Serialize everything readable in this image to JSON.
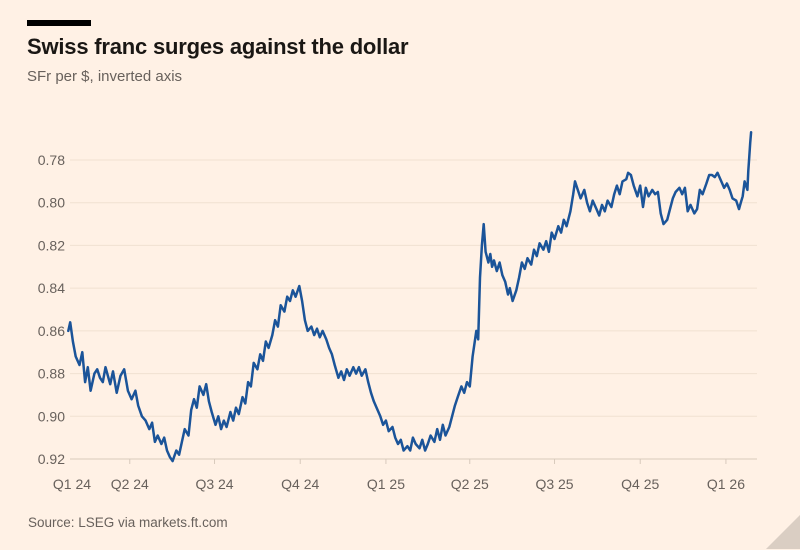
{
  "header": {
    "title": "Swiss franc surges against the dollar",
    "subtitle": "SFr per $, inverted axis"
  },
  "footer": {
    "source": "Source: LSEG via markets.ft.com"
  },
  "colors": {
    "background": "#FFF1E5",
    "line": "#1B5499",
    "title_text": "#1A1714",
    "muted_text": "#68615C",
    "gridline": "#F0E1D1",
    "axis_line": "#D8CABC"
  },
  "chart_data": {
    "type": "line",
    "title": "Swiss franc surges against the dollar",
    "subtitle": "SFr per $, inverted axis",
    "ylabel": "SFr per $",
    "y_inverted": true,
    "grid": true,
    "legend": "none",
    "y_axis": {
      "ticks": [
        0.78,
        0.8,
        0.82,
        0.84,
        0.86,
        0.88,
        0.9,
        0.92
      ],
      "range_top": 0.765,
      "range_bottom": 0.925
    },
    "x_axis": {
      "epoch": "2024-01-01",
      "unit": "days_since_epoch",
      "ticks": [
        {
          "label": "Q1 24",
          "day": 0
        },
        {
          "label": "Q2 24",
          "day": 91
        },
        {
          "label": "Q3 24",
          "day": 182
        },
        {
          "label": "Q4 24",
          "day": 274
        },
        {
          "label": "Q1 25",
          "day": 366
        },
        {
          "label": "Q2 25",
          "day": 456
        },
        {
          "label": "Q3 25",
          "day": 547
        },
        {
          "label": "Q4 25",
          "day": 639
        },
        {
          "label": "Q1 26",
          "day": 731
        }
      ]
    },
    "series": [
      {
        "name": "SFr per $",
        "points": [
          [
            25,
            0.86
          ],
          [
            27,
            0.856
          ],
          [
            30,
            0.865
          ],
          [
            33,
            0.872
          ],
          [
            37,
            0.876
          ],
          [
            40,
            0.87
          ],
          [
            43,
            0.884
          ],
          [
            46,
            0.877
          ],
          [
            49,
            0.888
          ],
          [
            53,
            0.88
          ],
          [
            56,
            0.878
          ],
          [
            59,
            0.882
          ],
          [
            62,
            0.884
          ],
          [
            65,
            0.877
          ],
          [
            70,
            0.885
          ],
          [
            73,
            0.879
          ],
          [
            77,
            0.889
          ],
          [
            81,
            0.881
          ],
          [
            85,
            0.878
          ],
          [
            89,
            0.888
          ],
          [
            93,
            0.892
          ],
          [
            97,
            0.888
          ],
          [
            100,
            0.895
          ],
          [
            104,
            0.9
          ],
          [
            108,
            0.902
          ],
          [
            112,
            0.906
          ],
          [
            115,
            0.903
          ],
          [
            118,
            0.912
          ],
          [
            121,
            0.909
          ],
          [
            125,
            0.913
          ],
          [
            128,
            0.91
          ],
          [
            131,
            0.916
          ],
          [
            134,
            0.919
          ],
          [
            137,
            0.921
          ],
          [
            141,
            0.916
          ],
          [
            144,
            0.918
          ],
          [
            147,
            0.912
          ],
          [
            150,
            0.906
          ],
          [
            154,
            0.909
          ],
          [
            157,
            0.897
          ],
          [
            160,
            0.892
          ],
          [
            163,
            0.896
          ],
          [
            166,
            0.886
          ],
          [
            170,
            0.89
          ],
          [
            173,
            0.885
          ],
          [
            176,
            0.893
          ],
          [
            179,
            0.898
          ],
          [
            183,
            0.904
          ],
          [
            186,
            0.9
          ],
          [
            189,
            0.906
          ],
          [
            192,
            0.902
          ],
          [
            195,
            0.905
          ],
          [
            199,
            0.898
          ],
          [
            202,
            0.902
          ],
          [
            205,
            0.896
          ],
          [
            208,
            0.899
          ],
          [
            212,
            0.891
          ],
          [
            215,
            0.894
          ],
          [
            218,
            0.884
          ],
          [
            221,
            0.886
          ],
          [
            224,
            0.875
          ],
          [
            228,
            0.878
          ],
          [
            231,
            0.871
          ],
          [
            234,
            0.874
          ],
          [
            237,
            0.865
          ],
          [
            240,
            0.868
          ],
          [
            244,
            0.862
          ],
          [
            247,
            0.855
          ],
          [
            250,
            0.858
          ],
          [
            253,
            0.848
          ],
          [
            257,
            0.851
          ],
          [
            260,
            0.844
          ],
          [
            263,
            0.846
          ],
          [
            266,
            0.841
          ],
          [
            269,
            0.844
          ],
          [
            273,
            0.839
          ],
          [
            276,
            0.846
          ],
          [
            279,
            0.855
          ],
          [
            282,
            0.86
          ],
          [
            286,
            0.858
          ],
          [
            289,
            0.862
          ],
          [
            292,
            0.859
          ],
          [
            295,
            0.863
          ],
          [
            298,
            0.86
          ],
          [
            302,
            0.864
          ],
          [
            305,
            0.868
          ],
          [
            308,
            0.871
          ],
          [
            311,
            0.876
          ],
          [
            315,
            0.882
          ],
          [
            318,
            0.879
          ],
          [
            321,
            0.883
          ],
          [
            324,
            0.878
          ],
          [
            327,
            0.881
          ],
          [
            331,
            0.877
          ],
          [
            334,
            0.88
          ],
          [
            337,
            0.877
          ],
          [
            340,
            0.881
          ],
          [
            344,
            0.878
          ],
          [
            347,
            0.884
          ],
          [
            350,
            0.889
          ],
          [
            353,
            0.893
          ],
          [
            356,
            0.896
          ],
          [
            360,
            0.9
          ],
          [
            363,
            0.904
          ],
          [
            366,
            0.902
          ],
          [
            369,
            0.907
          ],
          [
            373,
            0.905
          ],
          [
            376,
            0.91
          ],
          [
            379,
            0.913
          ],
          [
            382,
            0.911
          ],
          [
            385,
            0.916
          ],
          [
            389,
            0.914
          ],
          [
            392,
            0.916
          ],
          [
            395,
            0.91
          ],
          [
            398,
            0.913
          ],
          [
            402,
            0.915
          ],
          [
            405,
            0.911
          ],
          [
            408,
            0.916
          ],
          [
            411,
            0.913
          ],
          [
            414,
            0.909
          ],
          [
            418,
            0.912
          ],
          [
            421,
            0.906
          ],
          [
            424,
            0.911
          ],
          [
            427,
            0.904
          ],
          [
            430,
            0.909
          ],
          [
            434,
            0.905
          ],
          [
            437,
            0.9
          ],
          [
            440,
            0.895
          ],
          [
            443,
            0.891
          ],
          [
            447,
            0.886
          ],
          [
            450,
            0.889
          ],
          [
            453,
            0.884
          ],
          [
            456,
            0.886
          ],
          [
            459,
            0.872
          ],
          [
            463,
            0.86
          ],
          [
            465,
            0.864
          ],
          [
            467,
            0.835
          ],
          [
            469,
            0.82
          ],
          [
            471,
            0.81
          ],
          [
            473,
            0.823
          ],
          [
            476,
            0.828
          ],
          [
            478,
            0.824
          ],
          [
            480,
            0.83
          ],
          [
            482,
            0.827
          ],
          [
            485,
            0.832
          ],
          [
            488,
            0.828
          ],
          [
            491,
            0.834
          ],
          [
            494,
            0.837
          ],
          [
            497,
            0.843
          ],
          [
            499,
            0.84
          ],
          [
            502,
            0.846
          ],
          [
            506,
            0.841
          ],
          [
            509,
            0.835
          ],
          [
            512,
            0.828
          ],
          [
            515,
            0.831
          ],
          [
            518,
            0.826
          ],
          [
            522,
            0.829
          ],
          [
            525,
            0.822
          ],
          [
            528,
            0.825
          ],
          [
            531,
            0.819
          ],
          [
            535,
            0.822
          ],
          [
            538,
            0.818
          ],
          [
            541,
            0.823
          ],
          [
            544,
            0.814
          ],
          [
            547,
            0.817
          ],
          [
            551,
            0.811
          ],
          [
            554,
            0.814
          ],
          [
            557,
            0.808
          ],
          [
            560,
            0.811
          ],
          [
            564,
            0.804
          ],
          [
            567,
            0.796
          ],
          [
            569,
            0.79
          ],
          [
            572,
            0.794
          ],
          [
            575,
            0.798
          ],
          [
            579,
            0.794
          ],
          [
            582,
            0.8
          ],
          [
            585,
            0.804
          ],
          [
            588,
            0.799
          ],
          [
            592,
            0.803
          ],
          [
            595,
            0.806
          ],
          [
            598,
            0.801
          ],
          [
            601,
            0.804
          ],
          [
            604,
            0.799
          ],
          [
            608,
            0.802
          ],
          [
            611,
            0.796
          ],
          [
            614,
            0.792
          ],
          [
            617,
            0.796
          ],
          [
            620,
            0.79
          ],
          [
            624,
            0.789
          ],
          [
            626,
            0.786
          ],
          [
            629,
            0.787
          ],
          [
            632,
            0.792
          ],
          [
            636,
            0.797
          ],
          [
            639,
            0.792
          ],
          [
            642,
            0.802
          ],
          [
            645,
            0.793
          ],
          [
            648,
            0.797
          ],
          [
            652,
            0.794
          ],
          [
            655,
            0.796
          ],
          [
            658,
            0.795
          ],
          [
            661,
            0.805
          ],
          [
            664,
            0.81
          ],
          [
            668,
            0.808
          ],
          [
            671,
            0.803
          ],
          [
            674,
            0.798
          ],
          [
            677,
            0.795
          ],
          [
            681,
            0.793
          ],
          [
            684,
            0.796
          ],
          [
            687,
            0.793
          ],
          [
            690,
            0.804
          ],
          [
            693,
            0.801
          ],
          [
            697,
            0.805
          ],
          [
            700,
            0.803
          ],
          [
            703,
            0.794
          ],
          [
            706,
            0.796
          ],
          [
            710,
            0.791
          ],
          [
            713,
            0.787
          ],
          [
            716,
            0.787
          ],
          [
            719,
            0.788
          ],
          [
            722,
            0.786
          ],
          [
            726,
            0.79
          ],
          [
            729,
            0.793
          ],
          [
            732,
            0.791
          ],
          [
            735,
            0.794
          ],
          [
            738,
            0.798
          ],
          [
            742,
            0.799
          ],
          [
            745,
            0.803
          ],
          [
            747,
            0.8
          ],
          [
            749,
            0.797
          ],
          [
            751,
            0.79
          ],
          [
            754,
            0.794
          ],
          [
            755,
            0.785
          ],
          [
            756,
            0.779
          ],
          [
            757,
            0.772
          ],
          [
            758,
            0.767
          ]
        ]
      }
    ]
  }
}
